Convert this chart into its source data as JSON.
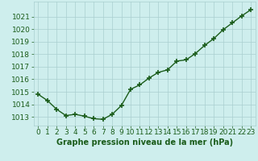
{
  "x": [
    0,
    1,
    2,
    3,
    4,
    5,
    6,
    7,
    8,
    9,
    10,
    11,
    12,
    13,
    14,
    15,
    16,
    17,
    18,
    19,
    20,
    21,
    22,
    23
  ],
  "y": [
    1014.8,
    1014.3,
    1013.6,
    1013.1,
    1013.2,
    1013.05,
    1012.85,
    1012.8,
    1013.2,
    1013.9,
    1015.2,
    1015.55,
    1016.1,
    1016.55,
    1016.75,
    1017.45,
    1017.55,
    1018.05,
    1018.7,
    1019.25,
    1019.95,
    1020.5,
    1021.05,
    1021.55
  ],
  "line_color": "#1a5c1a",
  "marker": "+",
  "marker_size": 5,
  "marker_linewidth": 1.2,
  "linewidth": 1.0,
  "linestyle": "-",
  "background_color": "#ceeeed",
  "grid_color": "#aacfcf",
  "xlabel": "Graphe pression niveau de la mer (hPa)",
  "xlabel_color": "#1a5c1a",
  "xlabel_fontsize": 7,
  "tick_color": "#1a5c1a",
  "tick_fontsize": 6.5,
  "ylim": [
    1012.3,
    1022.2
  ],
  "xlim": [
    -0.5,
    23.5
  ],
  "yticks": [
    1013,
    1014,
    1015,
    1016,
    1017,
    1018,
    1019,
    1020,
    1021
  ],
  "xticks": [
    0,
    1,
    2,
    3,
    4,
    5,
    6,
    7,
    8,
    9,
    10,
    11,
    12,
    13,
    14,
    15,
    16,
    17,
    18,
    19,
    20,
    21,
    22,
    23
  ]
}
